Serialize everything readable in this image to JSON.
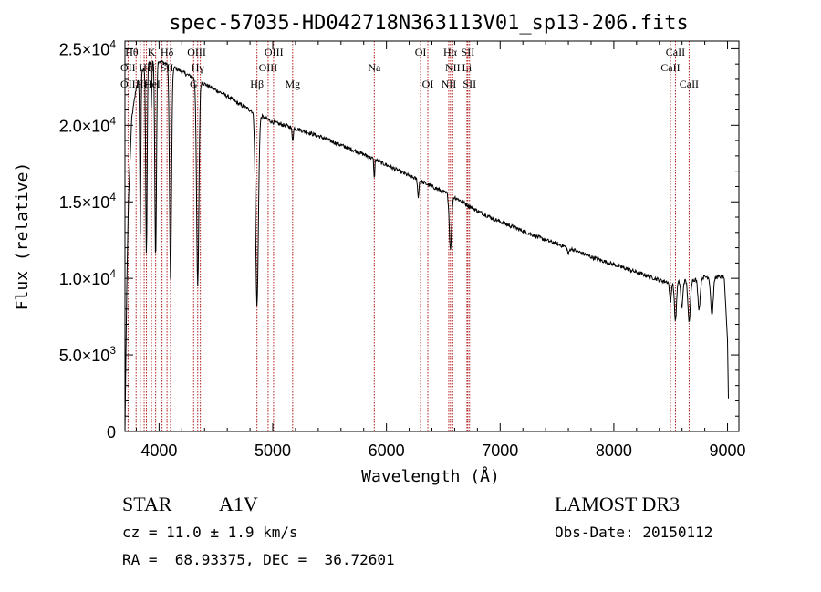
{
  "chart_data": {
    "type": "line",
    "title": "spec-57035-HD042718N363113V01_sp13-206.fits",
    "xlabel": "Wavelength (Å)",
    "ylabel": "Flux (relative)",
    "xlim": [
      3700,
      9100
    ],
    "ylim": [
      0,
      25500
    ],
    "x_ticks": [
      {
        "value": 4000,
        "label": "4000"
      },
      {
        "value": 5000,
        "label": "5000"
      },
      {
        "value": 6000,
        "label": "6000"
      },
      {
        "value": 7000,
        "label": "7000"
      },
      {
        "value": 8000,
        "label": "8000"
      },
      {
        "value": 9000,
        "label": "9000"
      }
    ],
    "y_ticks": [
      {
        "value": 0,
        "mant": "0",
        "exp": ""
      },
      {
        "value": 5000,
        "mant": "5.0×10",
        "exp": "3"
      },
      {
        "value": 10000,
        "mant": "1.0×10",
        "exp": "4"
      },
      {
        "value": 15000,
        "mant": "1.5×10",
        "exp": "4"
      },
      {
        "value": 20000,
        "mant": "2.0×10",
        "exp": "4"
      },
      {
        "value": 25000,
        "mant": "2.5×10",
        "exp": "4"
      }
    ],
    "continuum": [
      [
        3700,
        0
      ],
      [
        3715,
        9000
      ],
      [
        3730,
        15000
      ],
      [
        3760,
        20500
      ],
      [
        3800,
        22500
      ],
      [
        3850,
        23500
      ],
      [
        3900,
        24000
      ],
      [
        3950,
        24200
      ],
      [
        4000,
        24200
      ],
      [
        4100,
        23900
      ],
      [
        4200,
        23500
      ],
      [
        4300,
        23100
      ],
      [
        4400,
        22700
      ],
      [
        4500,
        22300
      ],
      [
        4600,
        21900
      ],
      [
        4700,
        21400
      ],
      [
        4800,
        21000
      ],
      [
        4900,
        20600
      ],
      [
        5000,
        20200
      ],
      [
        5200,
        19800
      ],
      [
        5400,
        19300
      ],
      [
        5600,
        18700
      ],
      [
        5800,
        18100
      ],
      [
        6000,
        17400
      ],
      [
        6200,
        16700
      ],
      [
        6400,
        16000
      ],
      [
        6600,
        15300
      ],
      [
        6800,
        14400
      ],
      [
        7000,
        13700
      ],
      [
        7200,
        13100
      ],
      [
        7400,
        12500
      ],
      [
        7600,
        12000
      ],
      [
        7800,
        11400
      ],
      [
        8000,
        10900
      ],
      [
        8200,
        10400
      ],
      [
        8400,
        9900
      ],
      [
        8500,
        9700
      ],
      [
        8600,
        9800
      ],
      [
        8700,
        9900
      ],
      [
        8800,
        10100
      ],
      [
        8900,
        10100
      ],
      [
        8970,
        10100
      ],
      [
        9000,
        6000
      ],
      [
        9010,
        1200
      ]
    ],
    "absorption_lines": [
      {
        "center": 3835,
        "depth": 10500,
        "width": 5
      },
      {
        "center": 3889,
        "depth": 12500,
        "width": 6
      },
      {
        "center": 3933,
        "depth": 3000,
        "width": 3
      },
      {
        "center": 3970,
        "depth": 13000,
        "width": 7
      },
      {
        "center": 4101,
        "depth": 14000,
        "width": 9
      },
      {
        "center": 4340,
        "depth": 13500,
        "width": 10
      },
      {
        "center": 4861,
        "depth": 12500,
        "width": 12
      },
      {
        "center": 5175,
        "depth": 800,
        "width": 6
      },
      {
        "center": 5893,
        "depth": 1300,
        "width": 4
      },
      {
        "center": 6280,
        "depth": 1200,
        "width": 5
      },
      {
        "center": 6563,
        "depth": 3500,
        "width": 10
      },
      {
        "center": 7600,
        "depth": 400,
        "width": 8
      },
      {
        "center": 8498,
        "depth": 1300,
        "width": 7
      },
      {
        "center": 8542,
        "depth": 2500,
        "width": 9
      },
      {
        "center": 8598,
        "depth": 1800,
        "width": 8
      },
      {
        "center": 8662,
        "depth": 2800,
        "width": 10
      },
      {
        "center": 8750,
        "depth": 2000,
        "width": 10
      },
      {
        "center": 8863,
        "depth": 2500,
        "width": 11
      }
    ],
    "marker_lines": [
      3727,
      3798,
      3835,
      3869,
      3889,
      3933,
      3970,
      4026,
      4070,
      4101,
      4304,
      4340,
      4363,
      4861,
      4959,
      5007,
      5175,
      5893,
      6300,
      6364,
      6548,
      6563,
      6583,
      6708,
      6716,
      6731,
      8498,
      8542,
      8662
    ],
    "line_labels": [
      {
        "text": "Hθ",
        "x": 3760,
        "row": 1
      },
      {
        "text": "K",
        "x": 3933,
        "row": 1
      },
      {
        "text": "Hδ",
        "x": 4070,
        "row": 1
      },
      {
        "text": "OIII",
        "x": 4330,
        "row": 1
      },
      {
        "text": "OIII",
        "x": 5010,
        "row": 1
      },
      {
        "text": "OI",
        "x": 6300,
        "row": 1
      },
      {
        "text": "Hα",
        "x": 6560,
        "row": 1
      },
      {
        "text": "SII",
        "x": 6716,
        "row": 1
      },
      {
        "text": "CaII",
        "x": 8542,
        "row": 1
      },
      {
        "text": "OII",
        "x": 3727,
        "row": 2
      },
      {
        "text": "He",
        "x": 3880,
        "row": 2
      },
      {
        "text": "H",
        "x": 3930,
        "row": 2
      },
      {
        "text": "SII",
        "x": 4070,
        "row": 2
      },
      {
        "text": "Hγ",
        "x": 4340,
        "row": 2
      },
      {
        "text": "OIII",
        "x": 4959,
        "row": 2
      },
      {
        "text": "Na",
        "x": 5893,
        "row": 2
      },
      {
        "text": "NII",
        "x": 6583,
        "row": 2
      },
      {
        "text": "Li",
        "x": 6708,
        "row": 2
      },
      {
        "text": "CaII",
        "x": 8498,
        "row": 2
      },
      {
        "text": "OII",
        "x": 3727,
        "row": 3
      },
      {
        "text": "Hε",
        "x": 3850,
        "row": 3
      },
      {
        "text": "HeI",
        "x": 3940,
        "row": 3
      },
      {
        "text": "G",
        "x": 4304,
        "row": 3
      },
      {
        "text": "Hβ",
        "x": 4861,
        "row": 3
      },
      {
        "text": "Mg",
        "x": 5175,
        "row": 3
      },
      {
        "text": "OI",
        "x": 6364,
        "row": 3
      },
      {
        "text": "NII",
        "x": 6548,
        "row": 3
      },
      {
        "text": "SII",
        "x": 6731,
        "row": 3
      },
      {
        "text": "CaII",
        "x": 8662,
        "row": 3
      }
    ],
    "colors": {
      "spectrum": "#000000",
      "marker": "#b22222",
      "axes": "#000000"
    }
  },
  "info": {
    "object_type": "STAR",
    "subclass": "A1V",
    "survey": "LAMOST DR3",
    "cz": "cz = 11.0 ± 1.9 km/s",
    "obs_date": "Obs-Date: 20150112",
    "coords": "RA =  68.93375, DEC =  36.72601"
  }
}
